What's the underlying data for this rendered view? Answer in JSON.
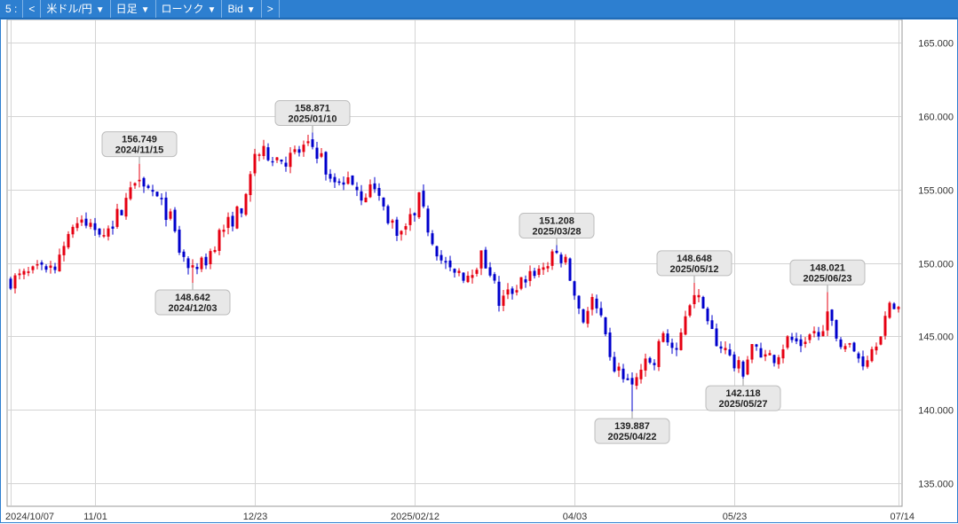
{
  "toolbar": {
    "items": [
      {
        "label": "5 :",
        "dropdown": false
      },
      {
        "label": "<",
        "dropdown": false
      },
      {
        "label": "米ドル/円",
        "dropdown": true
      },
      {
        "label": "日足",
        "dropdown": true
      },
      {
        "label": "ローソク",
        "dropdown": true
      },
      {
        "label": "Bid",
        "dropdown": true
      },
      {
        "label": ">",
        "dropdown": false
      }
    ]
  },
  "colors": {
    "up": "#e60012",
    "down": "#0000cc",
    "toolbar": "#2d7fd0"
  },
  "chart_data": {
    "type": "candlestick",
    "ylim": [
      133.5,
      166.5
    ],
    "yticks": [
      135.0,
      140.0,
      145.0,
      150.0,
      155.0,
      160.0,
      165.0
    ],
    "ytick_labels": [
      "135.000",
      "140.000",
      "145.000",
      "150.000",
      "155.000",
      "160.000",
      "165.000"
    ],
    "xticks": [
      {
        "label": "2024/10/07",
        "index": 0
      },
      {
        "label": "11/01",
        "index": 19
      },
      {
        "label": "12/23",
        "index": 55
      },
      {
        "label": "2025/02/12",
        "index": 91
      },
      {
        "label": "04/03",
        "index": 127
      },
      {
        "label": "05/23",
        "index": 163
      },
      {
        "label": "07/14",
        "index": 200
      }
    ],
    "annotations": [
      {
        "value": "156.749",
        "date": "2024/11/15",
        "index": 29,
        "price": 156.749,
        "pos": "above"
      },
      {
        "value": "148.642",
        "date": "2024/12/03",
        "index": 41,
        "price": 148.642,
        "pos": "below"
      },
      {
        "value": "158.871",
        "date": "2025/01/10",
        "index": 68,
        "price": 158.871,
        "pos": "above"
      },
      {
        "value": "151.208",
        "date": "2025/03/28",
        "index": 123,
        "price": 151.208,
        "pos": "above"
      },
      {
        "value": "139.887",
        "date": "2025/04/22",
        "index": 140,
        "price": 139.887,
        "pos": "below"
      },
      {
        "value": "148.648",
        "date": "2025/05/12",
        "index": 154,
        "price": 148.648,
        "pos": "above"
      },
      {
        "value": "142.118",
        "date": "2025/05/27",
        "index": 165,
        "price": 142.118,
        "pos": "below"
      },
      {
        "value": "148.021",
        "date": "2025/06/23",
        "index": 184,
        "price": 148.021,
        "pos": "above"
      }
    ],
    "anchors": [
      [
        0,
        148.8
      ],
      [
        5,
        149.3
      ],
      [
        10,
        150.0
      ],
      [
        14,
        152.6
      ],
      [
        18,
        152.5
      ],
      [
        22,
        152.2
      ],
      [
        26,
        154.3
      ],
      [
        29,
        156.2
      ],
      [
        33,
        154.3
      ],
      [
        36,
        153.0
      ],
      [
        38,
        150.8
      ],
      [
        41,
        149.2
      ],
      [
        44,
        150.2
      ],
      [
        47,
        152.0
      ],
      [
        50,
        153.0
      ],
      [
        53,
        154.2
      ],
      [
        55,
        157.5
      ],
      [
        58,
        157.4
      ],
      [
        62,
        157.0
      ],
      [
        66,
        157.8
      ],
      [
        68,
        157.9
      ],
      [
        70,
        157.2
      ],
      [
        72,
        155.4
      ],
      [
        76,
        156.0
      ],
      [
        79,
        154.6
      ],
      [
        82,
        155.2
      ],
      [
        85,
        153.0
      ],
      [
        88,
        152.0
      ],
      [
        90,
        153.0
      ],
      [
        92,
        154.3
      ],
      [
        94,
        152.4
      ],
      [
        97,
        150.2
      ],
      [
        100,
        149.0
      ],
      [
        103,
        149.3
      ],
      [
        106,
        150.4
      ],
      [
        108,
        149.5
      ],
      [
        110,
        147.3
      ],
      [
        114,
        148.4
      ],
      [
        117,
        149.3
      ],
      [
        120,
        149.7
      ],
      [
        123,
        150.6
      ],
      [
        125,
        150.0
      ],
      [
        127,
        147.8
      ],
      [
        129,
        146.2
      ],
      [
        131,
        147.4
      ],
      [
        133,
        146.0
      ],
      [
        135,
        143.2
      ],
      [
        138,
        142.3
      ],
      [
        140,
        141.5
      ],
      [
        142,
        142.8
      ],
      [
        145,
        143.3
      ],
      [
        147,
        145.3
      ],
      [
        150,
        143.6
      ],
      [
        152,
        146.6
      ],
      [
        154,
        148.2
      ],
      [
        157,
        145.5
      ],
      [
        160,
        144.4
      ],
      [
        163,
        143.0
      ],
      [
        165,
        142.7
      ],
      [
        167,
        144.5
      ],
      [
        170,
        143.2
      ],
      [
        172,
        143.6
      ],
      [
        175,
        144.8
      ],
      [
        178,
        144.5
      ],
      [
        181,
        145.2
      ],
      [
        184,
        146.2
      ],
      [
        186,
        145.0
      ],
      [
        189,
        144.2
      ],
      [
        192,
        143.3
      ],
      [
        194,
        144.2
      ],
      [
        196,
        145.5
      ],
      [
        198,
        146.8
      ],
      [
        200,
        147.2
      ]
    ]
  }
}
